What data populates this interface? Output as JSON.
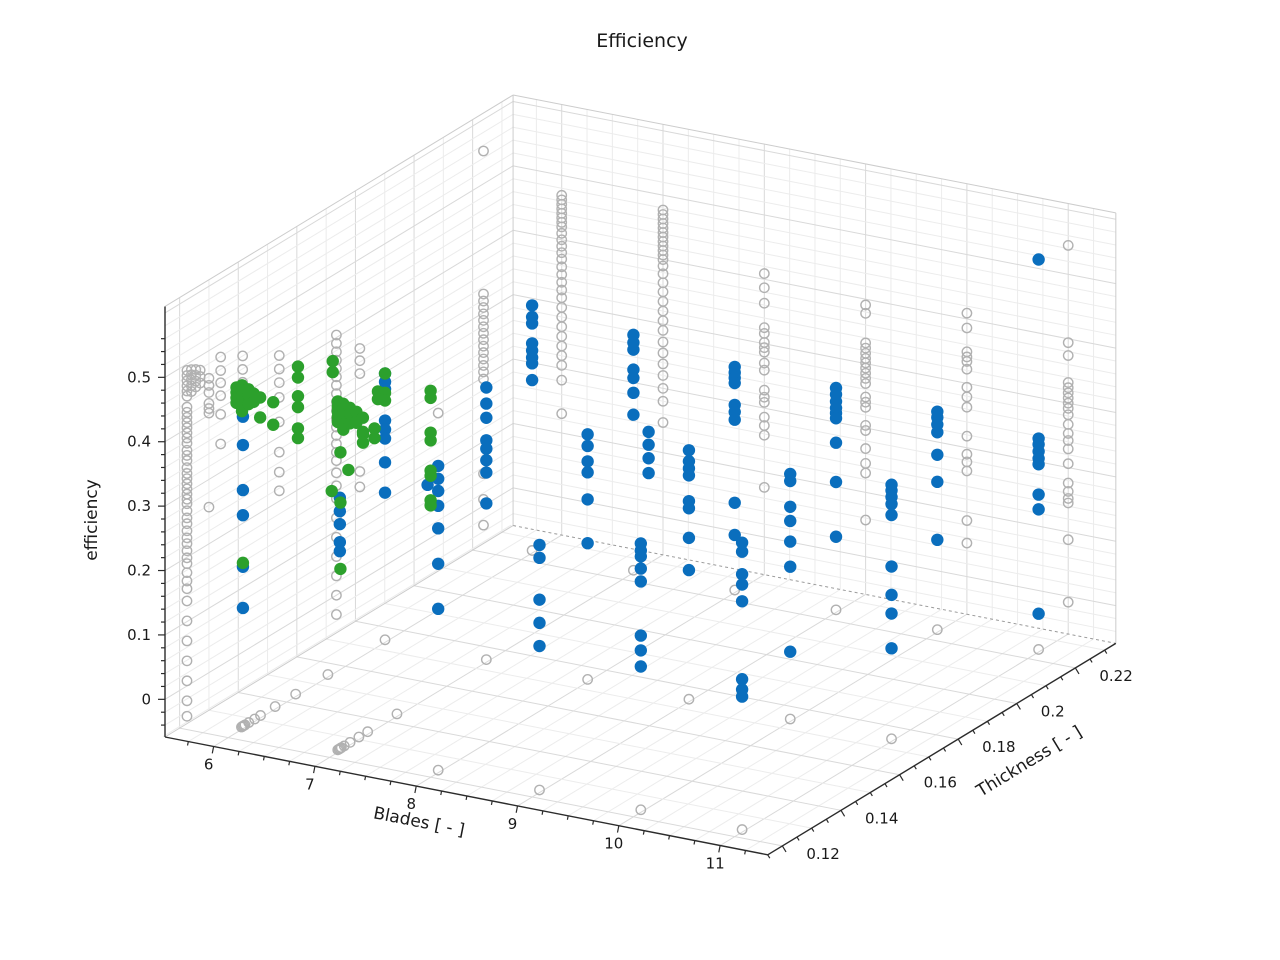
{
  "title": "Efficiency",
  "axes": {
    "x": {
      "label": "Blades [ - ]",
      "ticks": [
        6,
        7,
        8,
        9,
        10,
        11
      ],
      "tick_labels": [
        "6",
        "7",
        "8",
        "9",
        "10",
        "11"
      ],
      "range": [
        5.52,
        11.47
      ],
      "minor_step": 0.25
    },
    "y": {
      "label": "Thickness [ - ]",
      "ticks": [
        0.12,
        0.14,
        0.16,
        0.18,
        0.2,
        0.22
      ],
      "tick_labels": [
        "0.12",
        "0.14",
        "0.16",
        "0.18",
        "0.2",
        "0.22"
      ],
      "range": [
        0.115,
        0.2338
      ],
      "minor_step": 0.005
    },
    "z": {
      "label": "efficiency",
      "ticks": [
        0,
        0.1,
        0.2,
        0.3,
        0.4,
        0.5
      ],
      "tick_labels": [
        "0",
        "0.1",
        "0.2",
        "0.3",
        "0.4",
        "0.5"
      ],
      "range": [
        -0.0585,
        0.61
      ],
      "minor_step": 0.02
    }
  },
  "colors": {
    "blue": "#0a6ebd",
    "green": "#2ca02c",
    "gray": "#b1b1b1",
    "axis": "#2b2b2b",
    "grid_minor": "#ececec",
    "grid_major": "#d9d9d9",
    "edge": "#cccccc",
    "dashed_edge": "#9a9a9a",
    "background": "#ffffff"
  },
  "chart_data": {
    "type": "scatter",
    "projection": "3d",
    "title": "Efficiency",
    "xlabel": "Blades [ - ]",
    "ylabel": "Thickness [ - ]",
    "zlabel": "efficiency",
    "xlim": [
      5.52,
      11.47
    ],
    "ylim": [
      0.115,
      0.2338
    ],
    "zlim": [
      -0.0585,
      0.61
    ],
    "series": [
      {
        "name": "evaluations-gray",
        "color": "#b1b1b1",
        "marker": "open-circle",
        "columns": [
          {
            "b": 5.52,
            "t": 0.1225,
            "e": [
              0.49,
              0.482,
              0.474,
              0.466,
              0.458,
              0.45,
              0.433,
              0.425,
              0.417,
              0.409,
              0.401,
              0.393,
              0.385,
              0.377,
              0.366,
              0.358,
              0.35,
              0.339,
              0.33,
              0.322,
              0.314,
              0.306,
              0.298,
              0.29,
              0.283,
              0.272,
              0.261,
              0.252,
              0.241,
              0.23,
              0.221,
              0.21,
              0.199,
              0.19,
              0.176,
              0.163,
              0.151,
              0.132,
              0.101,
              0.07,
              0.039,
              0.008,
              -0.023,
              -0.047
            ]
          },
          {
            "b": 5.52,
            "t": 0.124,
            "e": [
              0.487,
              0.479,
              0.471,
              0.462,
              0.453
            ]
          },
          {
            "b": 5.52,
            "t": 0.1255,
            "e": [
              0.483,
              0.474,
              0.465,
              0.456
            ]
          },
          {
            "b": 5.52,
            "t": 0.127,
            "e": [
              0.478,
              0.468,
              0.458
            ]
          },
          {
            "b": 5.52,
            "t": 0.13,
            "e": [
              0.457,
              0.446,
              0.435,
              0.418,
              0.41,
              0.403,
              0.257
            ]
          },
          {
            "b": 5.52,
            "t": 0.134,
            "e": [
              0.479,
              0.458,
              0.439,
              0.419,
              0.39,
              0.344
            ]
          },
          {
            "b": 5.52,
            "t": 0.1415,
            "e": [
              0.46,
              0.439,
              0.419,
              0.399,
              0.368
            ]
          },
          {
            "b": 5.52,
            "t": 0.154,
            "e": [
              0.426,
              0.405,
              0.384,
              0.361,
              0.323,
              0.276,
              0.245,
              0.216
            ]
          },
          {
            "b": 5.52,
            "t": 0.1735,
            "e": [
              0.404,
              0.391,
              0.378,
              0.365,
              0.352,
              0.339,
              0.326,
              0.313,
              0.3,
              0.287,
              0.274,
              0.261,
              0.248,
              0.235,
              0.222,
              0.209,
              0.19,
              0.17,
              0.15,
              0.12,
              0.09,
              0.06,
              0.03,
              0.0,
              -0.03
            ]
          },
          {
            "b": 5.52,
            "t": 0.1815,
            "e": [
              0.361,
              0.342,
              0.322,
              0.17,
              0.146
            ]
          },
          {
            "b": 5.52,
            "t": 0.2237,
            "e": [
              0.551,
              0.329,
              0.318,
              0.308,
              0.298,
              0.288,
              0.278,
              0.268,
              0.258,
              0.248,
              0.238,
              0.228,
              0.218,
              0.208,
              0.197,
              0.05,
              0.01,
              -0.03
            ]
          },
          {
            "b": 6,
            "t": 0.2338,
            "e": [
              0.469,
              0.462,
              0.455,
              0.448,
              0.441,
              0.434,
              0.427,
              0.42,
              0.41,
              0.4,
              0.39,
              0.38,
              0.37,
              0.358,
              0.346,
              0.334,
              0.322,
              0.31,
              0.295,
              0.28,
              0.265,
              0.25,
              0.235,
              0.22,
              0.205,
              0.182,
              0.13
            ]
          },
          {
            "b": 7,
            "t": 0.2338,
            "e": [
              0.477,
              0.47,
              0.463,
              0.456,
              0.449,
              0.442,
              0.435,
              0.428,
              0.421,
              0.414,
              0.407,
              0.4,
              0.39,
              0.378,
              0.364,
              0.35,
              0.335,
              0.32,
              0.305,
              0.29,
              0.272,
              0.255,
              0.238,
              0.22,
              0.2,
              0.18,
              0.147
            ]
          },
          {
            "b": 8,
            "t": 0.2338,
            "e": [
              0.409,
              0.387,
              0.363,
              0.325,
              0.316,
              0.302,
              0.294,
              0.287,
              0.27,
              0.259,
              0.228,
              0.217,
              0.209,
              0.186,
              0.173,
              0.158,
              0.077
            ]
          },
          {
            "b": 9,
            "t": 0.2338,
            "e": [
              0.391,
              0.378,
              0.332,
              0.324,
              0.316,
              0.308,
              0.301,
              0.293,
              0.285,
              0.277,
              0.269,
              0.248,
              0.24,
              0.232,
              0.204,
              0.196,
              0.168,
              0.145,
              0.13,
              0.057
            ]
          },
          {
            "b": 10,
            "t": 0.2338,
            "e": [
              0.409,
              0.386,
              0.349,
              0.341,
              0.334,
              0.322,
              0.294,
              0.279,
              0.263,
              0.218,
              0.19,
              0.178,
              0.164,
              0.087,
              0.052
            ]
          },
          {
            "b": 11,
            "t": 0.2338,
            "e": [
              0.545,
              0.394,
              0.374,
              0.332,
              0.324,
              0.316,
              0.308,
              0.3,
              0.292,
              0.282,
              0.267,
              0.253,
              0.242,
              0.229,
              0.206,
              0.176,
              0.163,
              0.152,
              0.145,
              0.088,
              -0.009
            ]
          },
          {
            "b": 8,
            "t": 0.1225,
            "e": [
              0.5
            ]
          }
        ]
      },
      {
        "name": "designs-blue",
        "color": "#0a6ebd",
        "marker": "dot",
        "columns": [
          {
            "b": 6.0,
            "t": 0.125,
            "e": [
              0.426,
              0.382,
              0.312,
              0.273,
              0.193,
              0.129
            ]
          },
          {
            "b": 6.0,
            "t": 0.1735,
            "e": [
              0.359,
              0.346,
              0.335,
              0.286,
              0.272,
              0.258,
              0.221,
              0.174
            ]
          },
          {
            "b": 6.42,
            "t": 0.1735,
            "e": [
              0.199
            ]
          },
          {
            "b": 6.0,
            "t": 0.2237,
            "e": [
              0.326,
              0.308,
              0.298,
              0.267,
              0.256,
              0.245,
              0.236,
              0.21
            ]
          },
          {
            "b": 7.0,
            "t": 0.1235,
            "e": [
              0.335,
              0.314,
              0.294,
              0.266,
              0.252
            ]
          },
          {
            "b": 7.0,
            "t": 0.1735,
            "e": [
              0.368,
              0.343,
              0.321,
              0.286,
              0.273,
              0.255,
              0.236,
              0.188
            ]
          },
          {
            "b": 7.0,
            "t": 0.2237,
            "e": [
              0.311,
              0.299,
              0.288,
              0.257,
              0.244,
              0.221,
              0.187
            ]
          },
          {
            "b": 7.15,
            "t": 0.2237,
            "e": [
              0.165,
              0.145,
              0.124,
              0.101
            ]
          },
          {
            "b": 8.0,
            "t": 0.1225,
            "e": [
              0.418,
              0.398,
              0.379,
              0.356,
              0.321,
              0.266,
              0.196
            ]
          },
          {
            "b": 8.0,
            "t": 0.1735,
            "e": [
              0.326,
              0.308,
              0.284,
              0.267,
              0.225,
              0.157
            ]
          },
          {
            "b": 8.0,
            "t": 0.2237,
            "e": [
              0.292,
              0.283,
              0.275,
              0.267,
              0.233,
              0.222,
              0.21,
              0.081,
              0.031
            ]
          },
          {
            "b": 9.0,
            "t": 0.1225,
            "e": [
              0.326,
              0.306,
              0.241,
              0.205,
              0.169
            ]
          },
          {
            "b": 9.0,
            "t": 0.1735,
            "e": [
              0.332,
              0.315,
              0.304,
              0.293,
              0.253,
              0.242,
              0.196,
              0.146
            ]
          },
          {
            "b": 9.0,
            "t": 0.2237,
            "e": [
              0.29,
              0.28,
              0.269,
              0.259,
              0.251,
              0.243,
              0.205,
              0.144,
              0.059
            ]
          },
          {
            "b": 10.0,
            "t": 0.1225,
            "e": [
              0.359,
              0.348,
              0.339,
              0.32,
              0.3,
              0.216,
              0.193,
              0.168
            ]
          },
          {
            "b": 10.0,
            "t": 0.1735,
            "e": [
              0.326,
              0.315,
              0.275,
              0.253,
              0.221,
              0.182,
              0.05
            ]
          },
          {
            "b": 10.0,
            "t": 0.2237,
            "e": [
              0.284,
              0.275,
              0.264,
              0.252,
              0.217,
              0.175,
              0.085
            ]
          },
          {
            "b": 11.0,
            "t": 0.1225,
            "e": [
              0.391,
              0.377,
              0.342,
              0.326,
              0.3,
              0.179,
              0.163,
              0.152
            ]
          },
          {
            "b": 11.0,
            "t": 0.1735,
            "e": [
              0.34,
              0.331,
              0.321,
              0.31,
              0.293,
              0.213,
              0.169,
              0.14,
              0.086
            ]
          },
          {
            "b": 11.0,
            "t": 0.2237,
            "e": [
              0.551,
              0.273,
              0.264,
              0.253,
              0.242,
              0.233,
              0.186,
              0.163,
              0.001
            ]
          }
        ]
      },
      {
        "name": "optima-green",
        "color": "#2ca02c",
        "marker": "dot",
        "columns": [
          {
            "b": 5.98,
            "t": 0.1235,
            "e": [
              0.475,
              0.467,
              0.459,
              0.451
            ]
          },
          {
            "b": 6.02,
            "t": 0.124,
            "e": [
              0.478,
              0.47,
              0.462,
              0.454,
              0.446,
              0.438
            ]
          },
          {
            "b": 6.07,
            "t": 0.1245,
            "e": [
              0.472,
              0.463,
              0.449
            ]
          },
          {
            "b": 6.12,
            "t": 0.1245,
            "e": [
              0.467,
              0.454
            ]
          },
          {
            "b": 6.17,
            "t": 0.125,
            "e": [
              0.461,
              0.43
            ]
          },
          {
            "b": 6.27,
            "t": 0.126,
            "e": [
              0.454,
              0.419
            ]
          },
          {
            "b": 6.5,
            "t": 0.1265,
            "e": [
              0.515,
              0.498,
              0.469,
              0.452,
              0.419,
              0.404
            ]
          },
          {
            "b": 6.45,
            "t": 0.1735,
            "e": [
              0.346,
              0.335,
              0.281,
              0.269,
              0.222,
              0.214,
              0.176,
              0.168
            ]
          },
          {
            "b": 6.0,
            "t": 0.1735,
            "e": [
              0.359,
              0.329,
              0.317
            ]
          },
          {
            "b": 5.93,
            "t": 0.1735,
            "e": [
              0.329,
              0.317
            ]
          },
          {
            "b": 6.0,
            "t": 0.125,
            "e": [
              0.199
            ]
          },
          {
            "b": 6.93,
            "t": 0.1235,
            "e": [
              0.545,
              0.528
            ]
          },
          {
            "b": 6.98,
            "t": 0.1235,
            "e": [
              0.484,
              0.476,
              0.468,
              0.46,
              0.452
            ]
          },
          {
            "b": 7.02,
            "t": 0.124,
            "e": [
              0.48,
              0.472,
              0.464,
              0.456,
              0.448,
              0.44
            ]
          },
          {
            "b": 7.07,
            "t": 0.1245,
            "e": [
              0.474,
              0.465,
              0.45
            ]
          },
          {
            "b": 7.12,
            "t": 0.125,
            "e": [
              0.468,
              0.451
            ]
          },
          {
            "b": 7.17,
            "t": 0.1255,
            "e": [
              0.459,
              0.437
            ]
          },
          {
            "b": 7.27,
            "t": 0.126,
            "e": [
              0.444,
              0.429
            ]
          },
          {
            "b": 6.92,
            "t": 0.1235,
            "e": [
              0.343
            ]
          },
          {
            "b": 7.0,
            "t": 0.1237,
            "e": [
              0.405,
              0.327,
              0.224
            ]
          },
          {
            "b": 7.07,
            "t": 0.124,
            "e": [
              0.379
            ]
          },
          {
            "b": 7.2,
            "t": 0.1245,
            "e": [
              0.437,
              0.424
            ]
          }
        ]
      }
    ],
    "floor_markers": [
      [
        6,
        0.1735
      ],
      [
        7,
        0.1735
      ],
      [
        8,
        0.1735
      ],
      [
        9,
        0.1735
      ],
      [
        10,
        0.1735
      ],
      [
        11,
        0.1735
      ],
      [
        8,
        0.1225
      ],
      [
        9,
        0.1225
      ],
      [
        10,
        0.1225
      ],
      [
        11,
        0.1225
      ],
      [
        6,
        0.2237
      ],
      [
        7,
        0.2237
      ],
      [
        8,
        0.2237
      ],
      [
        9,
        0.2237
      ],
      [
        10,
        0.2237
      ],
      [
        11,
        0.2237
      ],
      [
        6,
        0.1245
      ],
      [
        6,
        0.1249
      ],
      [
        6,
        0.1253
      ],
      [
        6,
        0.1257
      ],
      [
        6,
        0.127
      ],
      [
        6,
        0.129
      ],
      [
        6,
        0.131
      ],
      [
        6,
        0.136
      ],
      [
        6,
        0.143
      ],
      [
        6,
        0.154
      ],
      [
        7,
        0.1228
      ],
      [
        7,
        0.1232
      ],
      [
        7,
        0.1236
      ],
      [
        7,
        0.124
      ],
      [
        7,
        0.125
      ],
      [
        7,
        0.127
      ],
      [
        7,
        0.13
      ],
      [
        7,
        0.133
      ],
      [
        7,
        0.143
      ]
    ]
  }
}
